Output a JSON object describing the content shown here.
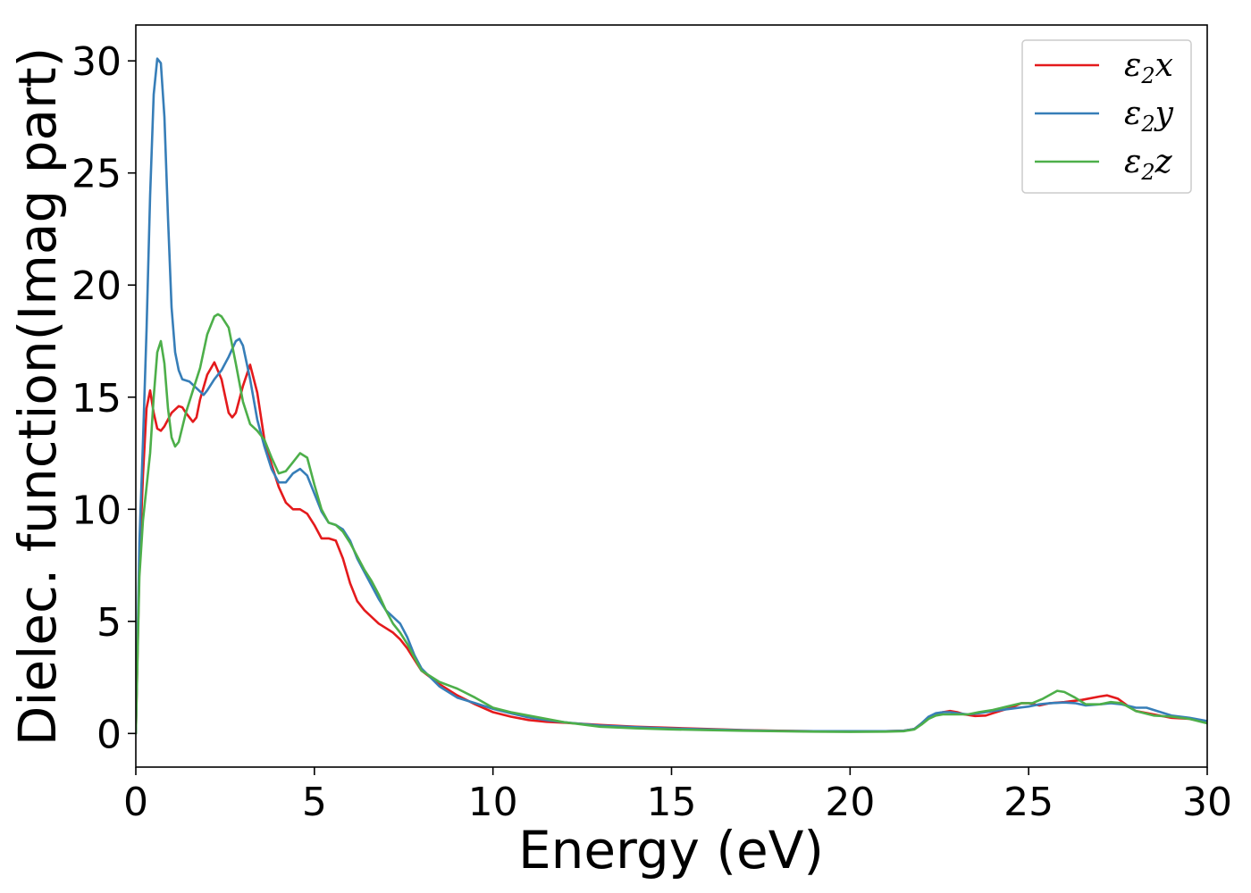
{
  "chart_data": {
    "type": "line",
    "title": "",
    "xlabel": "Energy (eV)",
    "ylabel": "Dielec. function(Imag part)",
    "xlim": [
      0,
      30
    ],
    "ylim": [
      -1.5,
      31.6
    ],
    "xticks": [
      0,
      5,
      10,
      15,
      20,
      25,
      30
    ],
    "yticks": [
      0,
      5,
      10,
      15,
      20,
      25,
      30
    ],
    "grid": false,
    "legend_position": "top-right",
    "series": [
      {
        "name": "ε2x",
        "legend": {
          "base": "ε",
          "sub": "2",
          "var": "x"
        },
        "color": "#e41a1c",
        "x": [
          0,
          0.1,
          0.2,
          0.3,
          0.4,
          0.5,
          0.6,
          0.7,
          0.8,
          0.9,
          1.0,
          1.2,
          1.3,
          1.4,
          1.6,
          1.7,
          1.8,
          2.0,
          2.2,
          2.4,
          2.6,
          2.7,
          2.8,
          3.0,
          3.2,
          3.4,
          3.6,
          3.8,
          4.0,
          4.2,
          4.4,
          4.6,
          4.8,
          5.0,
          5.2,
          5.4,
          5.6,
          5.8,
          6.0,
          6.2,
          6.4,
          6.6,
          6.8,
          7.0,
          7.2,
          7.4,
          7.6,
          7.8,
          8.0,
          8.5,
          9.0,
          9.5,
          10,
          10.5,
          11,
          11.5,
          12,
          13,
          14,
          15,
          16,
          17,
          18,
          19,
          20,
          21,
          21.5,
          21.8,
          22.0,
          22.2,
          22.4,
          22.6,
          22.8,
          23.0,
          23.2,
          23.5,
          23.8,
          24.0,
          24.5,
          24.8,
          25.0,
          25.3,
          25.6,
          26.0,
          26.5,
          27.0,
          27.2,
          27.5,
          27.8,
          28.0,
          28.5,
          29,
          29.5,
          30
        ],
        "values": [
          0,
          7.5,
          11.5,
          14.5,
          15.3,
          14.3,
          13.6,
          13.5,
          13.7,
          14.0,
          14.3,
          14.6,
          14.55,
          14.3,
          13.9,
          14.1,
          14.9,
          16.0,
          16.55,
          15.8,
          14.3,
          14.1,
          14.3,
          15.5,
          16.45,
          15.2,
          13.1,
          12.0,
          11.0,
          10.3,
          10.0,
          10.0,
          9.8,
          9.3,
          8.7,
          8.7,
          8.6,
          7.8,
          6.7,
          5.9,
          5.5,
          5.2,
          4.9,
          4.7,
          4.5,
          4.2,
          3.8,
          3.3,
          2.8,
          2.2,
          1.7,
          1.3,
          0.95,
          0.75,
          0.6,
          0.52,
          0.48,
          0.38,
          0.3,
          0.25,
          0.2,
          0.15,
          0.12,
          0.1,
          0.1,
          0.1,
          0.12,
          0.2,
          0.45,
          0.7,
          0.88,
          0.95,
          1.0,
          0.95,
          0.85,
          0.78,
          0.8,
          0.9,
          1.15,
          1.35,
          1.35,
          1.25,
          1.35,
          1.4,
          1.5,
          1.65,
          1.7,
          1.55,
          1.2,
          1.0,
          0.85,
          0.7,
          0.65,
          0.5
        ]
      },
      {
        "name": "ε2y",
        "legend": {
          "base": "ε",
          "sub": "2",
          "var": "y"
        },
        "color": "#377eb8",
        "x": [
          0,
          0.1,
          0.2,
          0.3,
          0.4,
          0.5,
          0.6,
          0.7,
          0.8,
          0.9,
          1.0,
          1.1,
          1.2,
          1.3,
          1.5,
          1.7,
          1.9,
          2.0,
          2.2,
          2.4,
          2.6,
          2.8,
          2.9,
          3.0,
          3.2,
          3.4,
          3.6,
          3.8,
          4.0,
          4.2,
          4.4,
          4.6,
          4.8,
          5.0,
          5.2,
          5.4,
          5.6,
          5.8,
          6.0,
          6.2,
          6.4,
          6.6,
          6.8,
          7.0,
          7.2,
          7.4,
          7.6,
          7.8,
          8.0,
          8.5,
          9.0,
          9.5,
          10,
          10.5,
          11,
          11.5,
          12,
          13,
          14,
          15,
          16,
          17,
          18,
          19,
          20,
          21,
          21.5,
          21.8,
          22.0,
          22.2,
          22.4,
          22.6,
          22.8,
          23.0,
          23.3,
          23.6,
          24.0,
          24.5,
          25.0,
          25.3,
          25.6,
          26.0,
          26.3,
          26.6,
          27.0,
          27.3,
          27.6,
          28.0,
          28.3,
          28.6,
          29,
          29.5,
          30
        ],
        "values": [
          0,
          8.5,
          13.0,
          18.0,
          24.0,
          28.5,
          30.1,
          29.9,
          27.5,
          23.0,
          19.0,
          17.0,
          16.2,
          15.8,
          15.7,
          15.4,
          15.1,
          15.3,
          15.8,
          16.2,
          16.8,
          17.5,
          17.6,
          17.3,
          15.8,
          14.0,
          12.8,
          11.8,
          11.2,
          11.2,
          11.6,
          11.8,
          11.5,
          10.7,
          9.9,
          9.4,
          9.3,
          9.1,
          8.6,
          7.8,
          7.2,
          6.6,
          6.0,
          5.5,
          5.2,
          4.9,
          4.3,
          3.5,
          2.9,
          2.1,
          1.6,
          1.35,
          1.1,
          0.9,
          0.72,
          0.6,
          0.5,
          0.35,
          0.28,
          0.22,
          0.18,
          0.14,
          0.11,
          0.1,
          0.1,
          0.1,
          0.12,
          0.2,
          0.45,
          0.75,
          0.9,
          0.95,
          0.95,
          0.9,
          0.85,
          0.9,
          1.0,
          1.1,
          1.2,
          1.3,
          1.35,
          1.38,
          1.35,
          1.25,
          1.3,
          1.35,
          1.3,
          1.15,
          1.15,
          1.0,
          0.8,
          0.7,
          0.55
        ]
      },
      {
        "name": "ε2z",
        "legend": {
          "base": "ε",
          "sub": "2",
          "var": "z"
        },
        "color": "#4daf4a",
        "x": [
          0,
          0.1,
          0.2,
          0.3,
          0.4,
          0.5,
          0.6,
          0.7,
          0.8,
          0.9,
          1.0,
          1.1,
          1.2,
          1.4,
          1.6,
          1.8,
          2.0,
          2.2,
          2.3,
          2.4,
          2.6,
          2.8,
          3.0,
          3.2,
          3.4,
          3.6,
          3.8,
          4.0,
          4.2,
          4.4,
          4.6,
          4.8,
          5.0,
          5.2,
          5.4,
          5.6,
          5.8,
          6.0,
          6.2,
          6.4,
          6.6,
          6.8,
          7.0,
          7.2,
          7.4,
          7.6,
          7.8,
          8.0,
          8.5,
          9.0,
          9.5,
          10,
          10.5,
          11,
          11.5,
          12,
          13,
          14,
          15,
          16,
          17,
          18,
          19,
          20,
          21,
          21.5,
          21.8,
          22.0,
          22.2,
          22.4,
          22.6,
          22.8,
          23.0,
          23.3,
          23.6,
          24.0,
          24.4,
          24.8,
          25.1,
          25.4,
          25.8,
          26.0,
          26.3,
          26.6,
          27.0,
          27.3,
          27.6,
          28.0,
          28.5,
          29,
          29.5,
          30
        ],
        "values": [
          0,
          7.0,
          9.5,
          11.0,
          12.5,
          15.0,
          17.0,
          17.5,
          16.5,
          14.5,
          13.2,
          12.8,
          13.0,
          14.3,
          15.3,
          16.3,
          17.8,
          18.6,
          18.7,
          18.6,
          18.1,
          16.5,
          14.8,
          13.8,
          13.5,
          13.1,
          12.3,
          11.6,
          11.7,
          12.1,
          12.5,
          12.3,
          11.1,
          10.0,
          9.4,
          9.3,
          9.0,
          8.5,
          7.9,
          7.3,
          6.8,
          6.2,
          5.5,
          4.9,
          4.5,
          4.0,
          3.4,
          2.8,
          2.3,
          2.0,
          1.6,
          1.15,
          0.95,
          0.8,
          0.65,
          0.5,
          0.3,
          0.23,
          0.18,
          0.15,
          0.12,
          0.1,
          0.08,
          0.07,
          0.08,
          0.1,
          0.18,
          0.4,
          0.65,
          0.8,
          0.85,
          0.85,
          0.85,
          0.85,
          0.95,
          1.05,
          1.2,
          1.35,
          1.35,
          1.55,
          1.9,
          1.85,
          1.6,
          1.3,
          1.3,
          1.4,
          1.35,
          1.0,
          0.8,
          0.75,
          0.65,
          0.45
        ]
      }
    ]
  }
}
